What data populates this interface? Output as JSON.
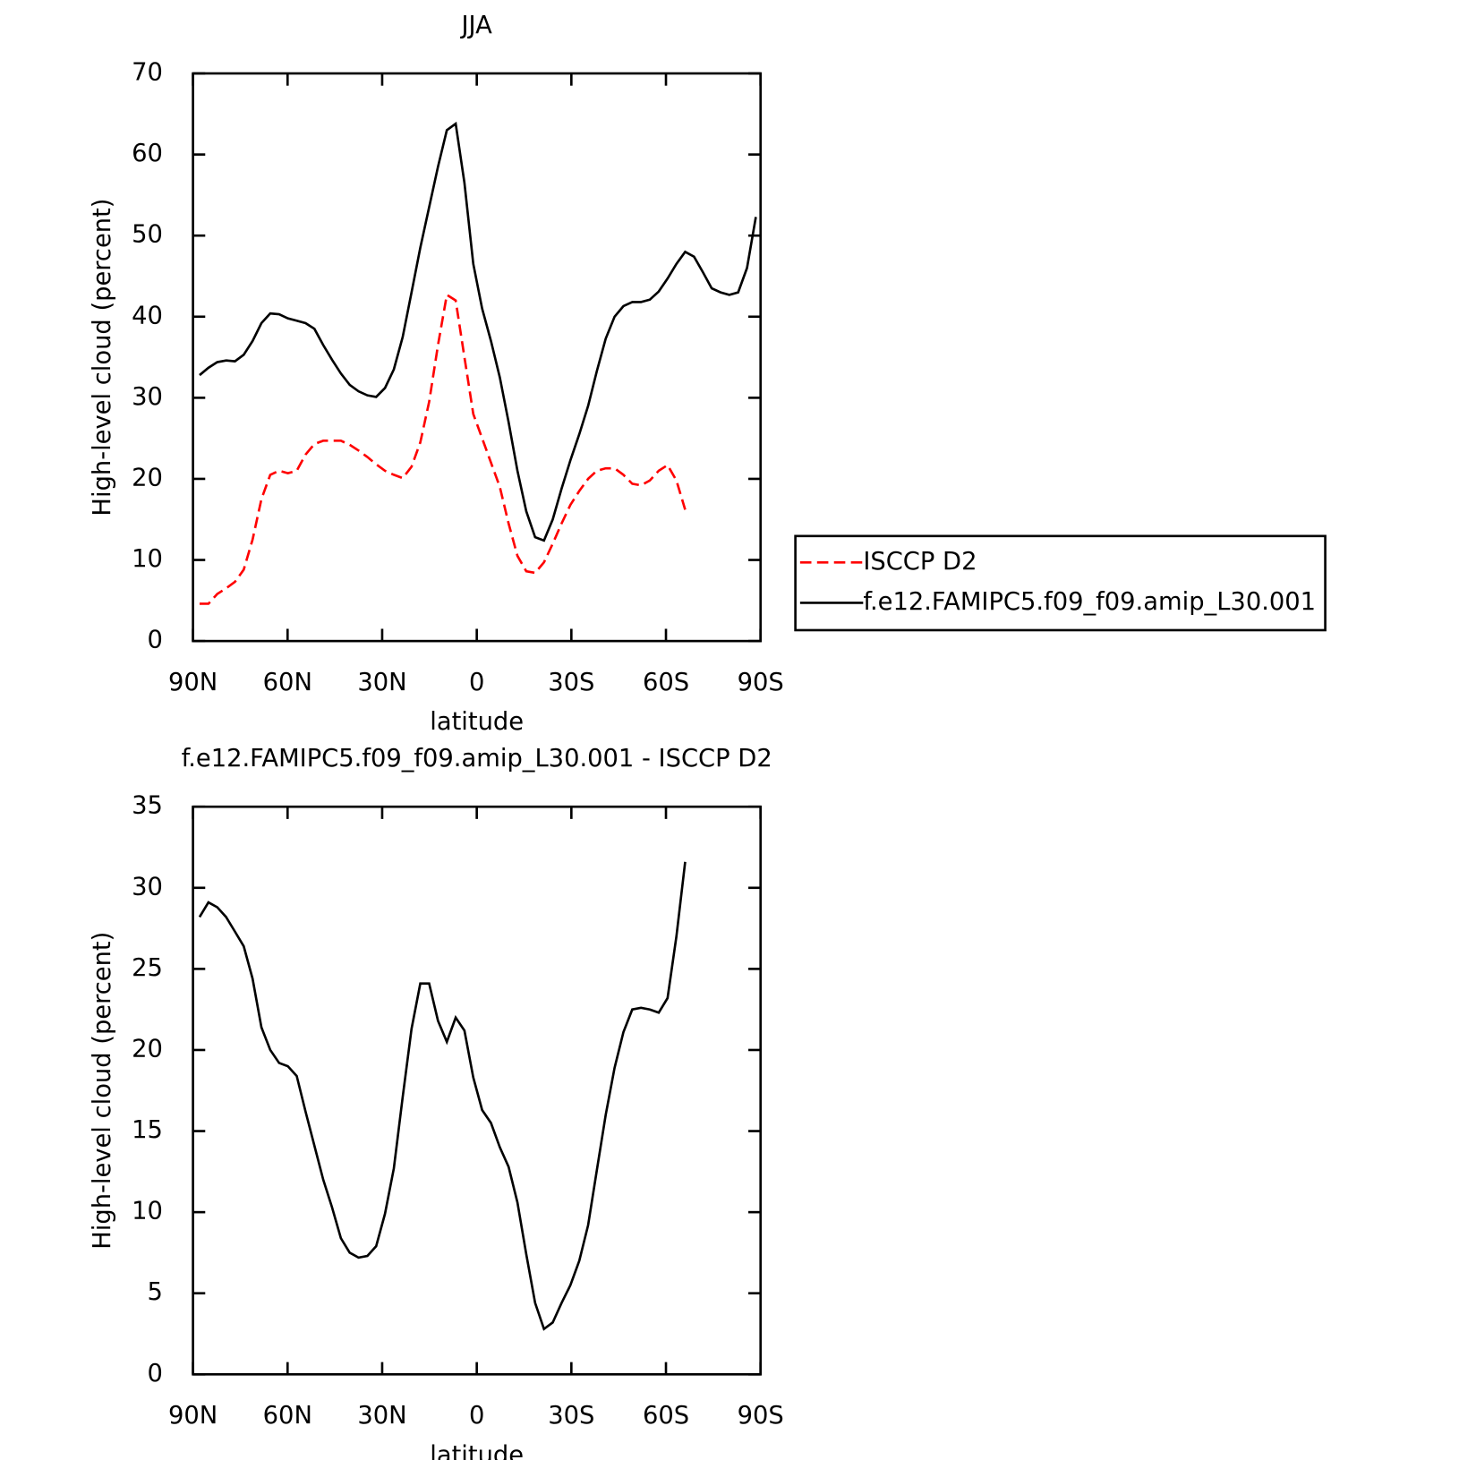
{
  "chart_data": [
    {
      "type": "line",
      "title": "JJA",
      "xlabel": "latitude",
      "ylabel": "High-level cloud (percent)",
      "x": [
        87.9,
        85.1,
        82.3,
        79.5,
        76.7,
        73.9,
        71.1,
        68.3,
        65.5,
        62.7,
        59.9,
        57.1,
        54.3,
        51.5,
        48.7,
        45.9,
        43.1,
        40.3,
        37.5,
        34.7,
        31.9,
        29.1,
        26.3,
        23.5,
        20.7,
        17.9,
        15.1,
        12.3,
        9.5,
        6.7,
        3.9,
        1.1,
        -1.7,
        -4.5,
        -7.3,
        -10.1,
        -12.9,
        -15.7,
        -18.5,
        -21.3,
        -24.1,
        -26.9,
        -29.7,
        -32.5,
        -35.3,
        -38.1,
        -40.9,
        -43.7,
        -46.5,
        -49.3,
        -52.1,
        -54.9,
        -57.7,
        -60.5,
        -63.3,
        -66.1,
        -68.9,
        -71.7,
        -74.5,
        -77.3,
        -80.1,
        -82.9,
        -85.7,
        -88.5
      ],
      "series": [
        {
          "name": "ISCCP D2",
          "color": "#ff0000",
          "dashed": true,
          "values": [
            4.6,
            4.6,
            5.8,
            6.5,
            7.3,
            8.8,
            12.5,
            17.5,
            20.5,
            21.0,
            20.7,
            21.0,
            23.0,
            24.3,
            24.7,
            24.7,
            24.7,
            24.2,
            23.5,
            22.7,
            21.8,
            21.0,
            20.5,
            20.1,
            21.5,
            24.5,
            29.5,
            36.5,
            42.7,
            42.0,
            35.0,
            28.0,
            25.0,
            22.0,
            19.0,
            14.5,
            10.5,
            8.6,
            8.4,
            9.7,
            12.0,
            14.5,
            16.8,
            18.5,
            20.0,
            21.0,
            21.3,
            21.3,
            20.5,
            19.4,
            19.2,
            19.8,
            21.0,
            21.7,
            19.8,
            16.2,
            null,
            null,
            null,
            null,
            null,
            null,
            null,
            null
          ]
        },
        {
          "name": "f.e12.FAMIPC5.f09_f09.amip_L30.001",
          "color": "#000000",
          "dashed": false,
          "values": [
            32.8,
            33.7,
            34.4,
            34.6,
            34.5,
            35.3,
            37.0,
            39.2,
            40.4,
            40.3,
            39.8,
            39.5,
            39.2,
            38.5,
            36.5,
            34.7,
            33.0,
            31.6,
            30.8,
            30.3,
            30.1,
            31.2,
            33.5,
            37.5,
            43.0,
            48.5,
            53.5,
            58.5,
            63.0,
            63.8,
            56.5,
            46.5,
            41.0,
            37.0,
            32.5,
            27.0,
            21.0,
            16.0,
            12.8,
            12.4,
            15.0,
            18.8,
            22.3,
            25.5,
            29.0,
            33.3,
            37.3,
            40.0,
            41.3,
            41.8,
            41.8,
            42.1,
            43.1,
            44.7,
            46.5,
            48.0,
            47.4,
            45.5,
            43.5,
            43.0,
            42.7,
            43.0,
            46.0,
            52.3
          ]
        }
      ],
      "xlim": [
        90,
        -90
      ],
      "xticks": [
        {
          "value": 90,
          "label": "90N"
        },
        {
          "value": 60,
          "label": "60N"
        },
        {
          "value": 30,
          "label": "30N"
        },
        0,
        {
          "value": -30,
          "label": "30S"
        },
        {
          "value": -60,
          "label": "60S"
        },
        {
          "value": -90,
          "label": "90S"
        }
      ],
      "ylim": [
        0,
        70
      ],
      "yticks": [
        0,
        10,
        20,
        30,
        40,
        50,
        60,
        70
      ],
      "legend": "right"
    },
    {
      "type": "line",
      "title": "f.e12.FAMIPC5.f09_f09.amip_L30.001 - ISCCP D2",
      "xlabel": "latitude",
      "ylabel": "High-level cloud (percent)",
      "x": [
        87.9,
        85.1,
        82.3,
        79.5,
        76.7,
        73.9,
        71.1,
        68.3,
        65.5,
        62.7,
        59.9,
        57.1,
        54.3,
        51.5,
        48.7,
        45.9,
        43.1,
        40.3,
        37.5,
        34.7,
        31.9,
        29.1,
        26.3,
        23.5,
        20.7,
        17.9,
        15.1,
        12.3,
        9.5,
        6.7,
        3.9,
        1.1,
        -1.7,
        -4.5,
        -7.3,
        -10.1,
        -12.9,
        -15.7,
        -18.5,
        -21.3,
        -24.1,
        -26.9,
        -29.7,
        -32.5,
        -35.3,
        -38.1,
        -40.9,
        -43.7,
        -46.5,
        -49.3,
        -52.1,
        -54.9,
        -57.7,
        -60.5,
        -63.3,
        -66.1,
        -68.9,
        -71.7,
        -74.5,
        -77.3,
        -80.1,
        -82.9,
        -85.7,
        -88.5
      ],
      "series": [
        {
          "color": "#000000",
          "dashed": false,
          "values": [
            28.2,
            29.1,
            28.8,
            28.2,
            27.3,
            26.4,
            24.4,
            21.4,
            20.0,
            19.2,
            19.0,
            18.4,
            16.2,
            14.1,
            12.0,
            10.3,
            8.4,
            7.5,
            7.2,
            7.3,
            7.9,
            9.9,
            12.7,
            17.1,
            21.3,
            24.1,
            24.1,
            21.8,
            20.5,
            22.0,
            21.2,
            18.3,
            16.3,
            15.5,
            14.0,
            12.8,
            10.6,
            7.4,
            4.4,
            2.8,
            3.2,
            4.4,
            5.5,
            7.0,
            9.2,
            12.6,
            16.0,
            18.9,
            21.1,
            22.5,
            22.6,
            22.5,
            22.3,
            23.2,
            27.0,
            31.6,
            null,
            null,
            null,
            null,
            null,
            null,
            null,
            null
          ]
        }
      ],
      "xlim": [
        90,
        -90
      ],
      "xticks": [
        {
          "value": 90,
          "label": "90N"
        },
        {
          "value": 60,
          "label": "60N"
        },
        {
          "value": 30,
          "label": "30N"
        },
        0,
        {
          "value": -30,
          "label": "30S"
        },
        {
          "value": -60,
          "label": "60S"
        },
        {
          "value": -90,
          "label": "90S"
        }
      ],
      "ylim": [
        0,
        35
      ],
      "yticks": [
        0,
        5,
        10,
        15,
        20,
        25,
        30,
        35
      ]
    }
  ]
}
